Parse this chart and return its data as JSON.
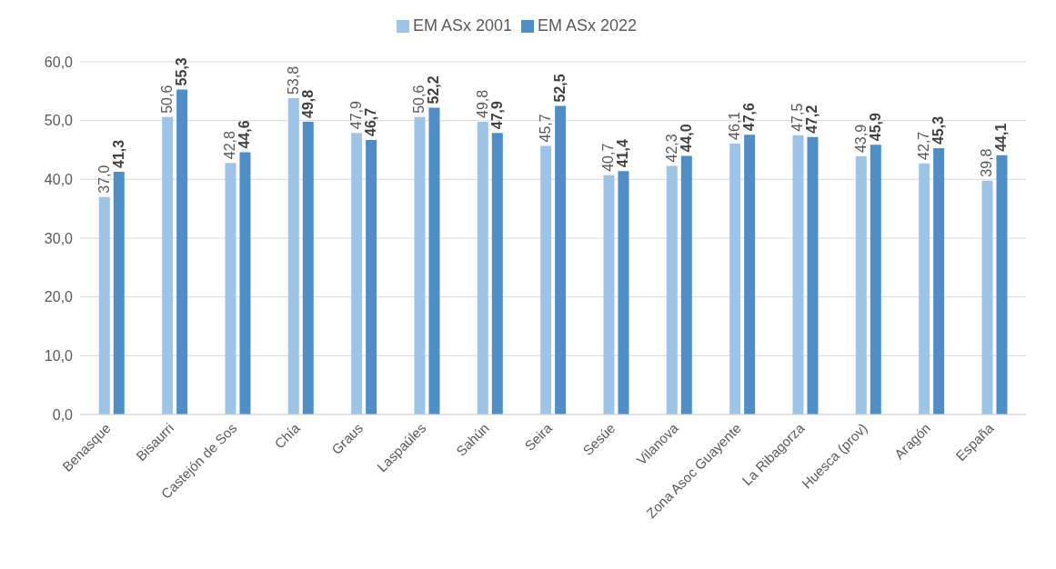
{
  "chart_data": {
    "type": "bar",
    "categories": [
      "Benasque",
      "Bisaurri",
      "Castejón de Sos",
      "Chía",
      "Graus",
      "Laspaúles",
      "Sahún",
      "Seira",
      "Sesúe",
      "Vilanova",
      "Zona Asoc Guayente",
      "La Ribagorza",
      "Huesca (prov)",
      "Aragón",
      "España"
    ],
    "series": [
      {
        "name": "EM ASx 2001",
        "color": "#9dc3e6",
        "values": [
          37.0,
          50.6,
          42.8,
          53.8,
          47.9,
          50.6,
          49.8,
          45.7,
          40.7,
          42.3,
          46.1,
          47.5,
          43.9,
          42.7,
          39.8
        ],
        "value_labels": [
          "37,0",
          "50,6",
          "42,8",
          "53,8",
          "47,9",
          "50,6",
          "49,8",
          "45,7",
          "40,7",
          "42,3",
          "46,1",
          "47,5",
          "43,9",
          "42,7",
          "39,8"
        ]
      },
      {
        "name": "EM ASx 2022",
        "color": "#4f8dc6",
        "values": [
          41.3,
          55.3,
          44.6,
          49.8,
          46.7,
          52.2,
          47.9,
          52.5,
          41.4,
          44.0,
          47.6,
          47.2,
          45.9,
          45.3,
          44.1
        ],
        "value_labels": [
          "41,3",
          "55,3",
          "44,6",
          "49,8",
          "46,7",
          "52,2",
          "47,9",
          "52,5",
          "41,4",
          "44,0",
          "47,6",
          "47,2",
          "45,9",
          "45,3",
          "44,1"
        ]
      }
    ],
    "ylim": [
      0,
      60
    ],
    "yticks": [
      {
        "value": 0,
        "label": "0,0"
      },
      {
        "value": 10,
        "label": "10,0"
      },
      {
        "value": 20,
        "label": "20,0"
      },
      {
        "value": 30,
        "label": "30,0"
      },
      {
        "value": 40,
        "label": "40,0"
      },
      {
        "value": 50,
        "label": "50,0"
      },
      {
        "value": 60,
        "label": "60,0"
      }
    ],
    "grid": "y",
    "legend": "top"
  }
}
